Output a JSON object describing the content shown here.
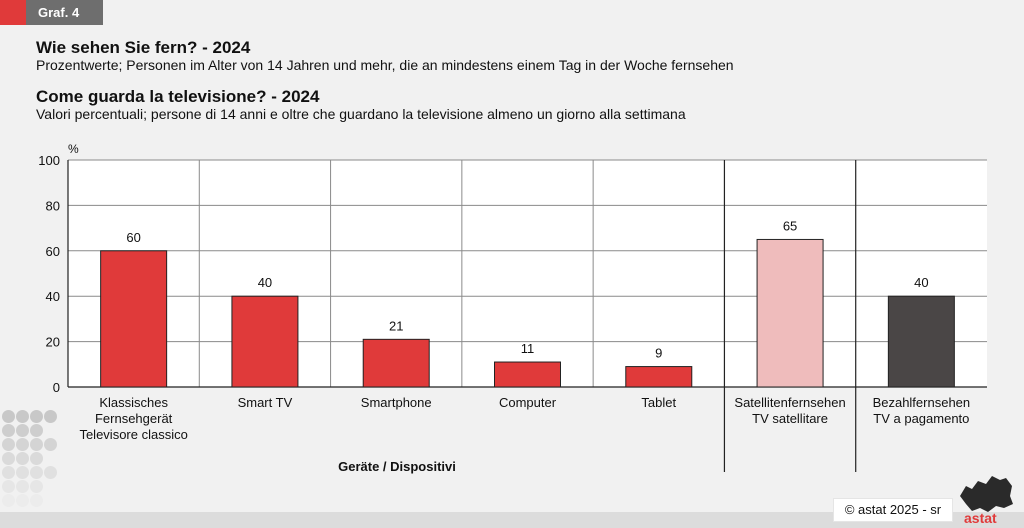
{
  "header": {
    "tag": "Graf. 4",
    "title_de": "Wie sehen Sie fern? - 2024",
    "subtitle_de": "Prozentwerte; Personen im Alter von 14 Jahren und mehr, die an mindestens einem Tag in der Woche fernsehen",
    "title_it": "Come guarda la televisione? - 2024",
    "subtitle_it": "Valori percentuali; persone di 14 anni e oltre che guardano la televisione almeno un giorno alla settimana"
  },
  "chart_data": {
    "type": "bar",
    "categories": [
      [
        "Klassisches",
        "Fernsehgerät",
        "Televisore classico"
      ],
      [
        "Smart TV"
      ],
      [
        "Smartphone"
      ],
      [
        "Computer"
      ],
      [
        "Tablet"
      ],
      [
        "Satellitenfernsehen",
        "TV satellitare"
      ],
      [
        "Bezahlfernsehen",
        "TV a pagamento"
      ]
    ],
    "values": [
      60,
      40,
      21,
      11,
      9,
      65,
      40
    ],
    "colors": [
      "#e03a3a",
      "#e03a3a",
      "#e03a3a",
      "#e03a3a",
      "#e03a3a",
      "#efbcbc",
      "#4a4646"
    ],
    "ylabel": "%",
    "xlabel": "Geräte / Dispositivi",
    "ylim": [
      0,
      100
    ],
    "yticks": [
      0,
      20,
      40,
      60,
      80,
      100
    ],
    "grid": true
  },
  "footer": {
    "copyright": "© astat 2025 - sr",
    "logo_text": "astat"
  }
}
